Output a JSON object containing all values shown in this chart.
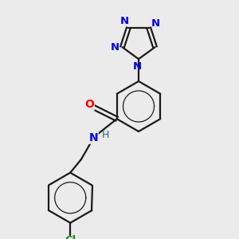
{
  "background_color": "#ebebeb",
  "bond_color": "#1a1a1a",
  "atom_colors": {
    "N": "#0000ee",
    "O": "#ff0000",
    "Cl": "#228822",
    "H": "#336666"
  },
  "figsize": [
    3.0,
    3.0
  ],
  "dpi": 100,
  "xlim": [
    0,
    10
  ],
  "ylim": [
    0,
    10
  ],
  "lw": 1.6,
  "lw_aromatic": 0.9
}
